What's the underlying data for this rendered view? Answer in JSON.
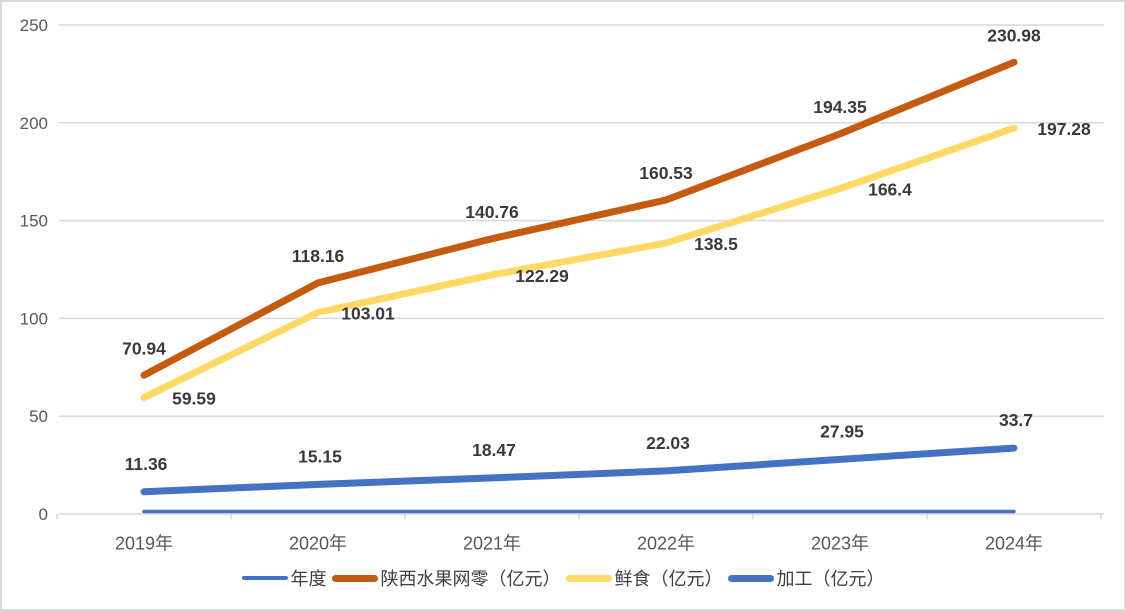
{
  "canvas": {
    "background": "#FFFFFF",
    "border_color": "#D9D9D9"
  },
  "chart_data": {
    "type": "line",
    "title": "",
    "xlabel": "",
    "ylabel": "",
    "categories": [
      "2019年",
      "2020年",
      "2021年",
      "2022年",
      "2023年",
      "2024年"
    ],
    "series": [
      {
        "name": "年度",
        "color": "#4472C4",
        "line_width": 3.5,
        "values": [
          0,
          0,
          0,
          0,
          0,
          0
        ],
        "show_labels": false,
        "label_dx": 0,
        "label_dy": 0
      },
      {
        "name": "陕西水果网零（亿元）",
        "color": "#C55A11",
        "line_width": 7,
        "values": [
          70.94,
          118.16,
          140.76,
          160.53,
          194.35,
          230.98
        ],
        "show_labels": true,
        "label_dx": 0,
        "label_dy": -27
      },
      {
        "name": "鲜食（亿元）",
        "color": "#FFD966",
        "line_width": 7,
        "values": [
          59.59,
          103.01,
          122.29,
          138.5,
          166.4,
          197.28
        ],
        "show_labels": true,
        "label_dx": 50,
        "label_dy": 1
      },
      {
        "name": "加工（亿元）",
        "color": "#4472C4",
        "line_width": 7,
        "values": [
          11.36,
          15.15,
          18.47,
          22.03,
          27.95,
          33.7
        ],
        "show_labels": true,
        "label_dx": 2,
        "label_dy": -28
      }
    ],
    "ylim": [
      0,
      250
    ],
    "ytick_interval": 50,
    "yticks": [
      "0",
      "50",
      "100",
      "150",
      "200",
      "250"
    ],
    "grid": true,
    "gridline_color": "#D9D9D9",
    "boundary_tick_color": "#BFBFBF",
    "axis_label_color": "#595959",
    "data_label_color": "#3A3A3A",
    "legend_position": "bottom"
  }
}
